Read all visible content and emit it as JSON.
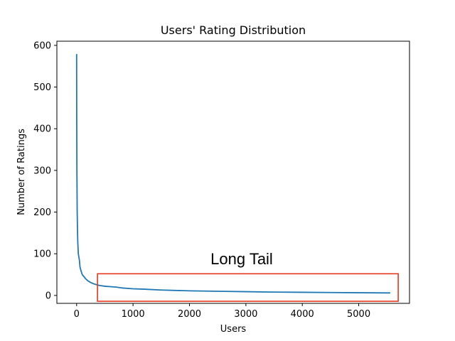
{
  "chart_data": {
    "type": "line",
    "title": "Users' Rating Distribution",
    "xlabel": "Users",
    "ylabel": "Number of Ratings",
    "xlim": [
      -350,
      5900
    ],
    "ylim": [
      -19,
      610
    ],
    "xticks": [
      0,
      1000,
      2000,
      3000,
      4000,
      5000
    ],
    "yticks": [
      0,
      100,
      200,
      300,
      400,
      500,
      600
    ],
    "grid": false,
    "series": [
      {
        "color": "#1f77b4",
        "x": [
          0,
          2,
          5,
          10,
          15,
          20,
          25,
          30,
          40,
          50,
          60,
          70,
          80,
          100,
          130,
          160,
          200,
          250,
          300,
          350,
          400,
          500,
          600,
          700,
          800,
          1000,
          1200,
          1500,
          2000,
          2500,
          3000,
          3500,
          4000,
          4500,
          5000,
          5500,
          5550
        ],
        "y": [
          578,
          420,
          300,
          200,
          160,
          130,
          115,
          100,
          92,
          84,
          68,
          63,
          58,
          50,
          45,
          40,
          35,
          31,
          28,
          26,
          24,
          22,
          21,
          20,
          18,
          16,
          15,
          13,
          11,
          10,
          9,
          8,
          7.5,
          7,
          6.5,
          6,
          6
        ]
      }
    ]
  },
  "annotation": {
    "text": "Long Tail",
    "box": {
      "x_range": [
        370,
        5700
      ],
      "y_range": [
        -14,
        52
      ],
      "color": "#e8361d"
    }
  }
}
